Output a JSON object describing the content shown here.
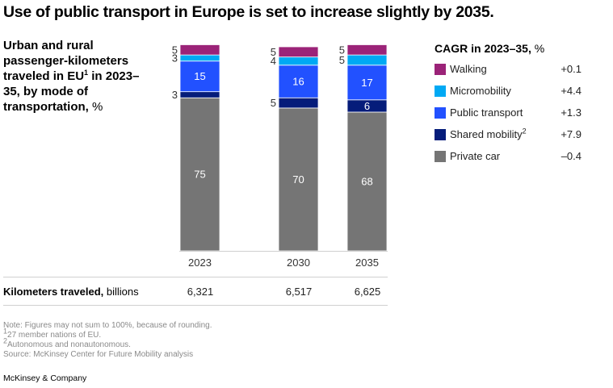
{
  "title": "Use of public transport in Europe is set to increase slightly by 2035.",
  "subtitle": {
    "text_before_sup": "Urban and rural passenger-kilometers traveled in EU",
    "sup": "1",
    "text_after_sup": " in 2023–35, by mode of transportation,",
    "unit": " %"
  },
  "legend": {
    "title": "CAGR in 2023–35,",
    "unit": " %",
    "items": [
      {
        "label": "Walking",
        "sup": "",
        "value": "+0.1",
        "color": "#9b2378"
      },
      {
        "label": "Micromobility",
        "sup": "",
        "value": "+4.4",
        "color": "#00a9f4"
      },
      {
        "label": "Public transport",
        "sup": "",
        "value": "+1.3",
        "color": "#2251ff"
      },
      {
        "label": "Shared mobility",
        "sup": "2",
        "value": "+7.9",
        "color": "#051c7a"
      },
      {
        "label": "Private car",
        "sup": "",
        "value": "–0.4",
        "color": "#757575"
      }
    ]
  },
  "chart_data": {
    "type": "bar",
    "stacked": true,
    "categories": [
      "2023",
      "2030",
      "2035"
    ],
    "series": [
      {
        "name": "Private car",
        "values": [
          75,
          70,
          68
        ],
        "color": "#757575",
        "label_pos": "inside"
      },
      {
        "name": "Shared mobility",
        "values": [
          3,
          5,
          6
        ],
        "color": "#051c7a",
        "label_pos": [
          "outside",
          "outside",
          "inside"
        ]
      },
      {
        "name": "Public transport",
        "values": [
          15,
          16,
          17
        ],
        "color": "#2251ff",
        "label_pos": "inside"
      },
      {
        "name": "Micromobility",
        "values": [
          3,
          4,
          5
        ],
        "color": "#00a9f4",
        "label_pos": "outside"
      },
      {
        "name": "Walking",
        "values": [
          5,
          5,
          5
        ],
        "color": "#9b2378",
        "label_pos": "outside"
      }
    ],
    "ylim": [
      0,
      100
    ],
    "grid": false,
    "legend": "right",
    "xlabel": "",
    "ylabel": ""
  },
  "km_row": {
    "label_bold": "Kilometers traveled,",
    "label_unit": " billions",
    "values": [
      "6,321",
      "6,517",
      "6,625"
    ]
  },
  "notes": {
    "note": "Note: Figures may not sum to 100%, because of rounding.",
    "fn1_mark": "1",
    "fn1": "27 member nations of EU.",
    "fn2_mark": "2",
    "fn2": "Autonomous and nonautonomous.",
    "source": "Source: McKinsey Center for Future Mobility analysis"
  },
  "brand": "McKinsey & Company"
}
